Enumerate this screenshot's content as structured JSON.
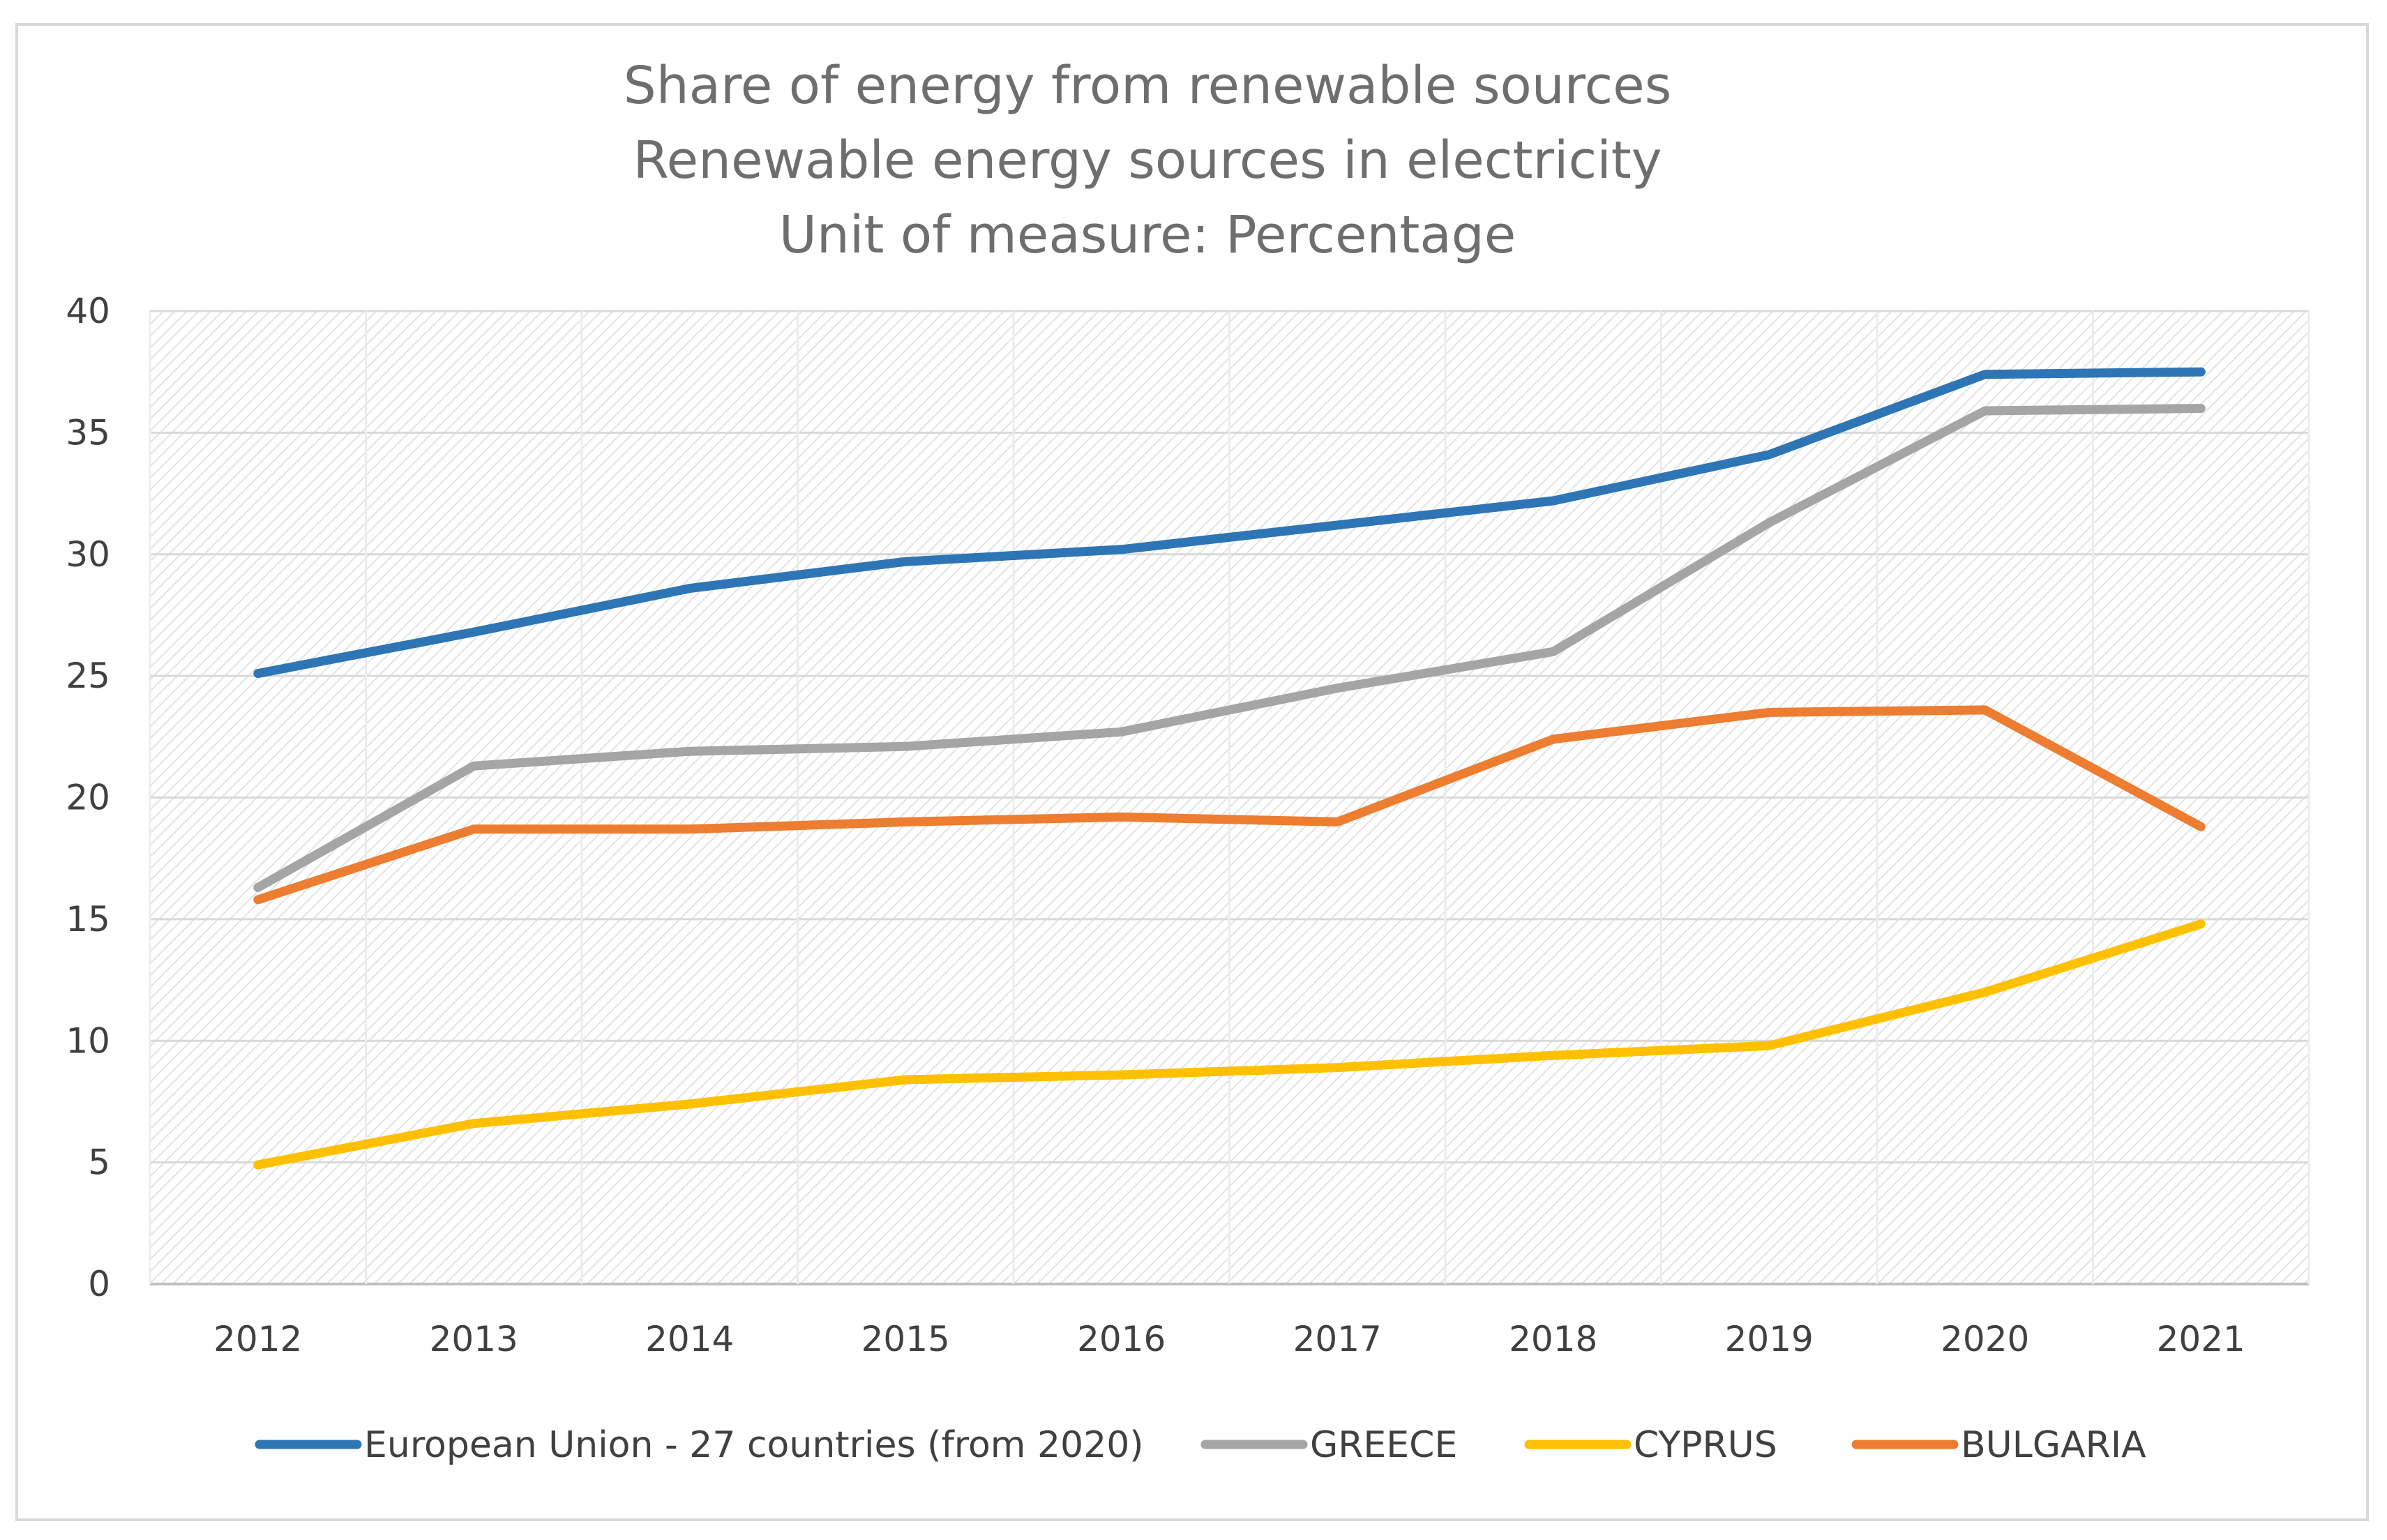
{
  "chart_data": {
    "type": "line",
    "title_lines": [
      "Share of energy from renewable sources",
      "Renewable energy sources in electricity",
      "Unit of measure: Percentage"
    ],
    "xlabel": "",
    "ylabel": "",
    "categories": [
      "2012",
      "2013",
      "2014",
      "2015",
      "2016",
      "2017",
      "2018",
      "2019",
      "2020",
      "2021"
    ],
    "ylim": [
      0,
      40
    ],
    "yticks": [
      0,
      5,
      10,
      15,
      20,
      25,
      30,
      35,
      40
    ],
    "grid": true,
    "legend_position": "bottom",
    "series": [
      {
        "name": "European Union - 27 countries (from 2020)",
        "color": "#2e75b6",
        "values": [
          25.1,
          26.8,
          28.6,
          29.7,
          30.2,
          31.2,
          32.2,
          34.1,
          37.4,
          37.5
        ]
      },
      {
        "name": "GREECE",
        "color": "#a5a5a5",
        "values": [
          16.3,
          21.3,
          21.9,
          22.1,
          22.7,
          24.5,
          26.0,
          31.3,
          35.9,
          36.0
        ]
      },
      {
        "name": "CYPRUS",
        "color": "#ffc000",
        "values": [
          4.9,
          6.6,
          7.4,
          8.4,
          8.6,
          8.9,
          9.4,
          9.8,
          12.0,
          14.8
        ]
      },
      {
        "name": "BULGARIA",
        "color": "#ed7d31",
        "values": [
          15.8,
          18.7,
          18.7,
          19.0,
          19.2,
          19.0,
          22.4,
          23.5,
          23.6,
          18.8
        ]
      }
    ]
  }
}
